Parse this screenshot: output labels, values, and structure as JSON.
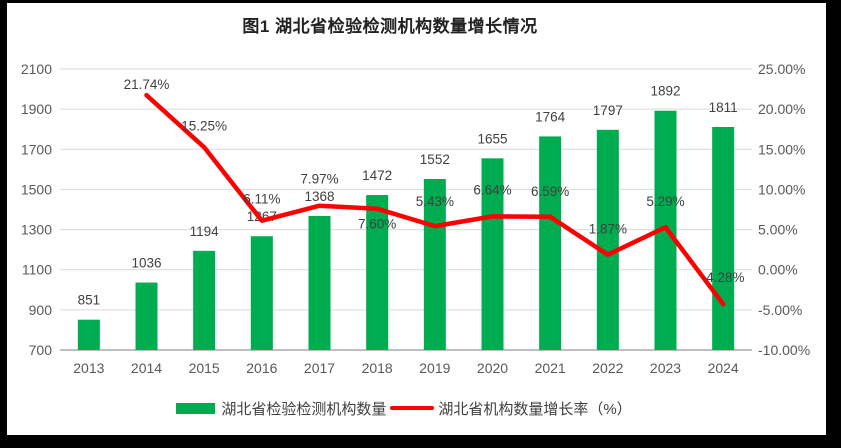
{
  "colors": {
    "bar": "#00AC50",
    "line": "#FE0000",
    "grid": "#D9D9D9",
    "axis_line": "#BFBFBF",
    "tick_text": "#595959",
    "label_text": "#404040",
    "title_text": "#222222",
    "frame": "#000000",
    "background": "#FFFFFF"
  },
  "chart_data": {
    "type": "bar",
    "subtype": "bar-line-combo",
    "title": "图1 湖北省检验检测机构数量增长情况",
    "categories": [
      "2013",
      "2014",
      "2015",
      "2016",
      "2017",
      "2018",
      "2019",
      "2020",
      "2021",
      "2022",
      "2023",
      "2024"
    ],
    "series": [
      {
        "name": "湖北省检验检测机构数量",
        "type": "bar",
        "axis": "left",
        "color": "#00AC50",
        "values": [
          851,
          1036,
          1194,
          1267,
          1368,
          1472,
          1552,
          1655,
          1764,
          1797,
          1892,
          1811
        ],
        "labels": [
          "851",
          "1036",
          "1194",
          "1267",
          "1368",
          "1472",
          "1552",
          "1655",
          "1764",
          "1797",
          "1892",
          "1811"
        ]
      },
      {
        "name": "湖北省机构数量增长率（%）",
        "type": "line",
        "axis": "right",
        "color": "#FE0000",
        "values": [
          null,
          21.74,
          15.25,
          6.11,
          7.97,
          7.6,
          5.43,
          6.64,
          6.59,
          1.87,
          5.29,
          -4.28
        ],
        "labels": [
          null,
          "21.74%",
          "15.25%",
          "6.11%",
          "7.97%",
          "7.60%",
          "5.43%",
          "6.64%",
          "6.59%",
          "1.87%",
          "5.29%",
          "-4.28%"
        ]
      }
    ],
    "left_axis": {
      "min": 700,
      "max": 2100,
      "step": 200,
      "tick_labels": [
        "2100",
        "1900",
        "1700",
        "1500",
        "1300",
        "1100",
        "900",
        "700"
      ]
    },
    "right_axis": {
      "min": -10,
      "max": 25,
      "step": 5,
      "tick_labels": [
        "25.00%",
        "20.00%",
        "15.00%",
        "10.00%",
        "5.00%",
        "0.00%",
        "-5.00%",
        "-10.00%"
      ]
    },
    "grid": true,
    "legend_position": "bottom",
    "line_label_dy": [
      0,
      -11,
      -22,
      -22,
      -27,
      15,
      -25,
      -27,
      -26,
      -26,
      -26,
      -27
    ]
  },
  "legend": {
    "items": [
      {
        "label": "湖北省检验检测机构数量",
        "swatch": "bar",
        "color": "#00AC50"
      },
      {
        "label": "湖北省机构数量增长率（%）",
        "swatch": "line",
        "color": "#FE0000"
      }
    ]
  }
}
